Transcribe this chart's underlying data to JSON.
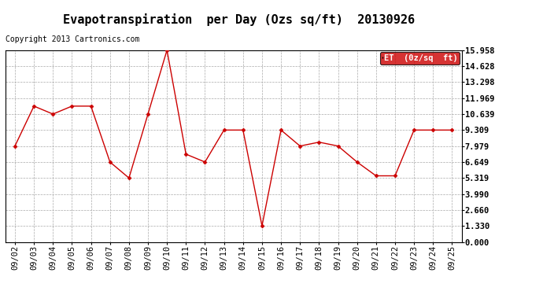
{
  "title": "Evapotranspiration  per Day (Ozs sq/ft)  20130926",
  "copyright": "Copyright 2013 Cartronics.com",
  "legend_label": "ET  (0z/sq  ft)",
  "x_labels": [
    "09/02",
    "09/03",
    "09/04",
    "09/05",
    "09/06",
    "09/07",
    "09/08",
    "09/09",
    "09/10",
    "09/11",
    "09/12",
    "09/13",
    "09/14",
    "09/15",
    "09/16",
    "09/17",
    "09/18",
    "09/19",
    "09/20",
    "09/21",
    "09/22",
    "09/23",
    "09/24",
    "09/25"
  ],
  "y_values": [
    7.979,
    11.3,
    10.639,
    11.3,
    11.3,
    6.649,
    5.319,
    10.639,
    15.958,
    7.3,
    6.649,
    9.309,
    9.309,
    1.33,
    9.309,
    7.979,
    8.3,
    7.979,
    6.649,
    5.5,
    5.5,
    9.309,
    9.309,
    9.309
  ],
  "y_ticks": [
    0.0,
    1.33,
    2.66,
    3.99,
    5.319,
    6.649,
    7.979,
    9.309,
    10.639,
    11.969,
    13.298,
    14.628,
    15.958
  ],
  "line_color": "#cc0000",
  "marker_color": "#cc0000",
  "background_color": "#ffffff",
  "grid_color": "#aaaaaa",
  "legend_bg": "#cc0000",
  "legend_text_color": "#ffffff",
  "title_fontsize": 11,
  "copyright_fontsize": 7,
  "tick_fontsize": 7.5,
  "legend_fontsize": 7.5
}
